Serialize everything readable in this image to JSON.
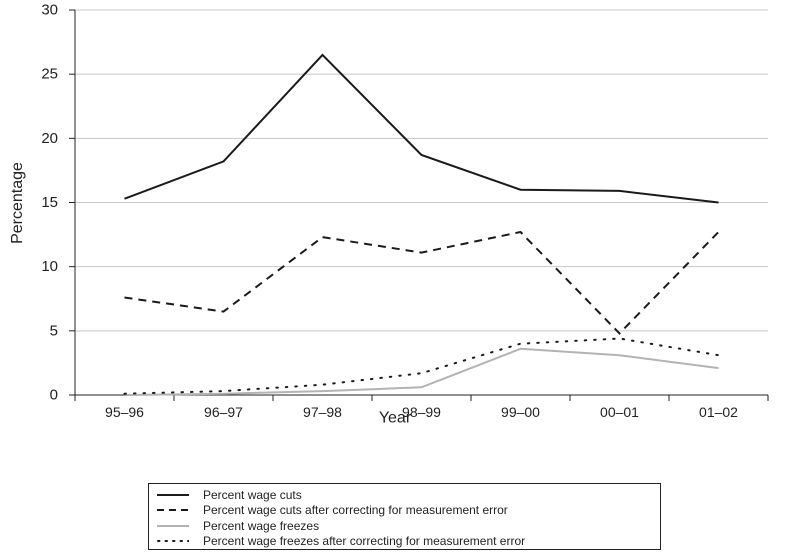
{
  "chart_data": {
    "type": "line",
    "title": "",
    "xlabel": "Year",
    "ylabel": "Percentage",
    "categories": [
      "95–96",
      "96–97",
      "97–98",
      "98–99",
      "99–00",
      "00–01",
      "01–02"
    ],
    "ylim": [
      0,
      30
    ],
    "yticks": [
      0,
      5,
      10,
      15,
      20,
      25,
      30
    ],
    "grid": "horizontal",
    "legend_position": "bottom",
    "series": [
      {
        "name": "Percent wage cuts",
        "style": "solid",
        "color": "#1a1a1a",
        "values": [
          15.3,
          18.2,
          26.5,
          18.7,
          16.0,
          15.9,
          15.0
        ]
      },
      {
        "name": "Percent wage cuts after correcting for measurement error",
        "style": "dashed",
        "color": "#1a1a1a",
        "values": [
          7.6,
          6.5,
          12.3,
          11.1,
          12.7,
          4.8,
          12.7
        ]
      },
      {
        "name": "Percent wage freezes",
        "style": "solid",
        "color": "#b3b3b3",
        "values": [
          0.0,
          0.1,
          0.3,
          0.6,
          3.6,
          3.1,
          2.1
        ]
      },
      {
        "name": "Percent wage freezes after correcting for measurement error",
        "style": "dotted",
        "color": "#1a1a1a",
        "values": [
          0.1,
          0.3,
          0.8,
          1.7,
          4.0,
          4.4,
          3.1
        ]
      }
    ]
  }
}
